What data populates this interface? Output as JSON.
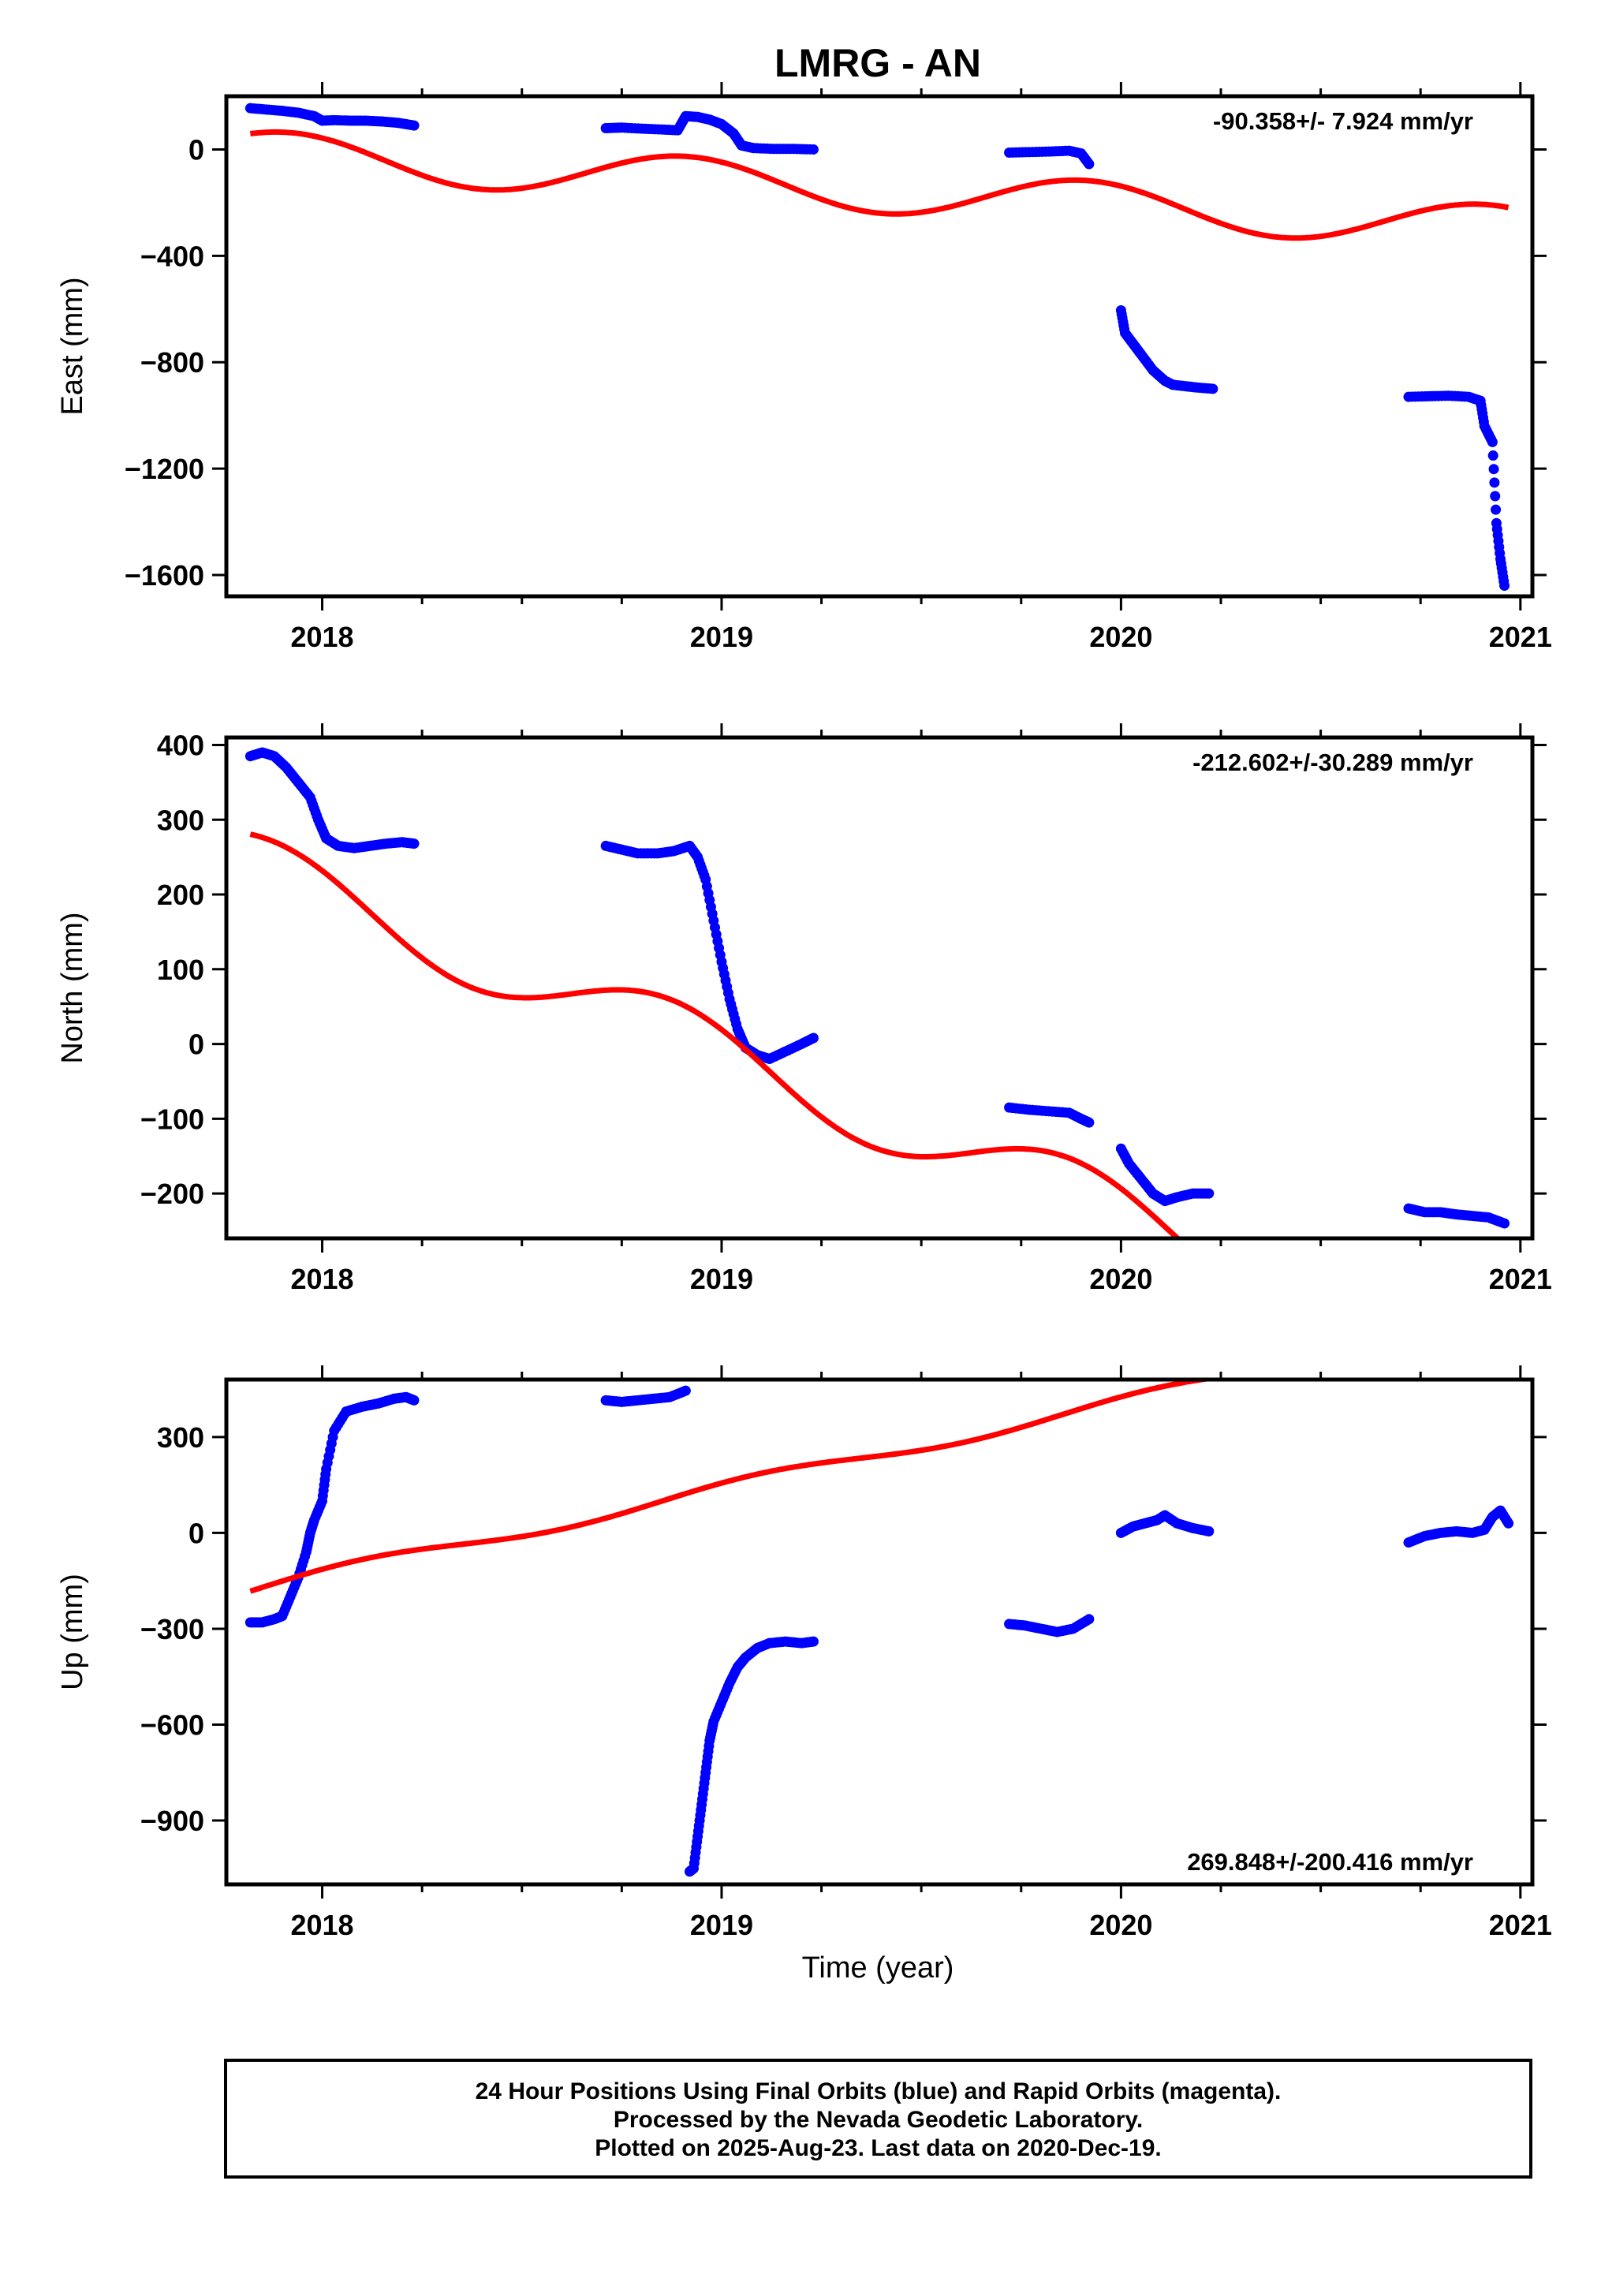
{
  "colors": {
    "final_orbits": "#0000ff",
    "model": "#ff0000",
    "frame": "#000000"
  },
  "footer": {
    "line1": "24 Hour Positions Using Final Orbits (blue) and Rapid Orbits (magenta).",
    "line2": "Processed by the Nevada Geodetic Laboratory.",
    "line3": "Plotted on 2025-Aug-23. Last data on 2020-Dec-19."
  },
  "chart_data": [
    {
      "type": "scatter",
      "title": "LMRG - AN",
      "xlabel": "",
      "ylabel": "East (mm)",
      "rate_label": "-90.358+/- 7.924 mm/yr",
      "xlim": [
        2017.76,
        2021.03
      ],
      "ylim": [
        -1680,
        200
      ],
      "x_ticks": [
        2018,
        2019,
        2020,
        2021
      ],
      "x_tick_labels": [
        "2018",
        "2019",
        "2020",
        "2021"
      ],
      "y_ticks": [
        0,
        -400,
        -800,
        -1200,
        -1600
      ],
      "y_tick_labels": [
        "0",
        "−400",
        "−800",
        "−1200",
        "−1600"
      ],
      "series": [
        {
          "segments": [
            [
              [
                2017.82,
                155
              ],
              [
                2017.86,
                150
              ],
              [
                2017.9,
                145
              ],
              [
                2017.94,
                138
              ],
              [
                2017.98,
                125
              ],
              [
                2018.0,
                108
              ],
              [
                2018.03,
                110
              ],
              [
                2018.07,
                108
              ],
              [
                2018.11,
                108
              ],
              [
                2018.15,
                105
              ],
              [
                2018.19,
                100
              ],
              [
                2018.23,
                90
              ]
            ],
            [
              [
                2018.71,
                80
              ],
              [
                2018.75,
                82
              ],
              [
                2018.8,
                78
              ],
              [
                2018.85,
                75
              ],
              [
                2018.89,
                72
              ],
              [
                2018.91,
                125
              ],
              [
                2018.94,
                122
              ],
              [
                2018.97,
                112
              ],
              [
                2019.0,
                95
              ],
              [
                2019.03,
                60
              ],
              [
                2019.05,
                15
              ],
              [
                2019.08,
                5
              ],
              [
                2019.13,
                2
              ],
              [
                2019.18,
                2
              ],
              [
                2019.23,
                0
              ]
            ],
            [
              [
                2019.72,
                -12
              ],
              [
                2019.77,
                -10
              ],
              [
                2019.82,
                -8
              ],
              [
                2019.87,
                -5
              ],
              [
                2019.9,
                -15
              ],
              [
                2019.92,
                -55
              ]
            ],
            [
              [
                2020.0,
                -605
              ],
              [
                2020.01,
                -690
              ],
              [
                2020.03,
                -730
              ],
              [
                2020.05,
                -770
              ],
              [
                2020.08,
                -830
              ],
              [
                2020.11,
                -870
              ],
              [
                2020.13,
                -885
              ],
              [
                2020.16,
                -890
              ],
              [
                2020.19,
                -895
              ],
              [
                2020.23,
                -900
              ]
            ],
            [
              [
                2020.72,
                -930
              ],
              [
                2020.77,
                -928
              ],
              [
                2020.82,
                -926
              ],
              [
                2020.87,
                -930
              ],
              [
                2020.9,
                -945
              ],
              [
                2020.91,
                -1040
              ],
              [
                2020.93,
                -1100
              ],
              [
                2020.94,
                -1405
              ],
              [
                2020.95,
                -1540
              ],
              [
                2020.96,
                -1640
              ]
            ]
          ]
        },
        {
          "type": "line",
          "model": {
            "offset": -29,
            "rate": -90.358,
            "amp": 85,
            "phase_year": 2017.91
          }
        }
      ]
    },
    {
      "type": "scatter",
      "title": "",
      "xlabel": "",
      "ylabel": "North (mm)",
      "rate_label": "-212.602+/-30.289 mm/yr",
      "xlim": [
        2017.76,
        2021.03
      ],
      "ylim": [
        -260,
        410
      ],
      "x_ticks": [
        2018,
        2019,
        2020,
        2021
      ],
      "x_tick_labels": [
        "2018",
        "2019",
        "2020",
        "2021"
      ],
      "y_ticks": [
        400,
        300,
        200,
        100,
        0,
        -100,
        -200
      ],
      "y_tick_labels": [
        "400",
        "300",
        "200",
        "100",
        "0",
        "−100",
        "−200"
      ],
      "series": [
        {
          "segments": [
            [
              [
                2017.82,
                385
              ],
              [
                2017.85,
                390
              ],
              [
                2017.88,
                385
              ],
              [
                2017.91,
                370
              ],
              [
                2017.94,
                350
              ],
              [
                2017.97,
                330
              ],
              [
                2017.99,
                300
              ],
              [
                2018.01,
                275
              ],
              [
                2018.04,
                265
              ],
              [
                2018.08,
                262
              ],
              [
                2018.12,
                265
              ],
              [
                2018.16,
                268
              ],
              [
                2018.2,
                270
              ],
              [
                2018.23,
                268
              ]
            ],
            [
              [
                2018.71,
                265
              ],
              [
                2018.75,
                260
              ],
              [
                2018.79,
                255
              ],
              [
                2018.84,
                255
              ],
              [
                2018.88,
                258
              ],
              [
                2018.92,
                265
              ],
              [
                2018.94,
                250
              ],
              [
                2018.96,
                220
              ],
              [
                2018.98,
                165
              ],
              [
                2019.0,
                110
              ],
              [
                2019.02,
                60
              ],
              [
                2019.04,
                20
              ],
              [
                2019.06,
                -5
              ],
              [
                2019.09,
                -15
              ],
              [
                2019.12,
                -20
              ],
              [
                2019.16,
                -10
              ],
              [
                2019.2,
                0
              ],
              [
                2019.23,
                8
              ]
            ],
            [
              [
                2019.72,
                -85
              ],
              [
                2019.77,
                -88
              ],
              [
                2019.82,
                -90
              ],
              [
                2019.87,
                -92
              ],
              [
                2019.9,
                -100
              ],
              [
                2019.92,
                -105
              ]
            ],
            [
              [
                2020.0,
                -140
              ],
              [
                2020.02,
                -160
              ],
              [
                2020.05,
                -180
              ],
              [
                2020.08,
                -200
              ],
              [
                2020.11,
                -210
              ],
              [
                2020.14,
                -205
              ],
              [
                2020.18,
                -200
              ],
              [
                2020.22,
                -200
              ]
            ],
            [
              [
                2020.72,
                -220
              ],
              [
                2020.76,
                -225
              ],
              [
                2020.8,
                -225
              ],
              [
                2020.84,
                -228
              ],
              [
                2020.88,
                -230
              ],
              [
                2020.92,
                -232
              ],
              [
                2020.96,
                -240
              ]
            ]
          ]
        },
        {
          "type": "line",
          "model": {
            "offset": 200,
            "rate": -212.602,
            "amp": 45,
            "phase_year": 2017.875
          }
        }
      ]
    },
    {
      "type": "scatter",
      "title": "",
      "xlabel": "Time (year)",
      "ylabel": "Up (mm)",
      "rate_label": "269.848+/-200.416 mm/yr",
      "xlim": [
        2017.76,
        2021.03
      ],
      "ylim": [
        -1100,
        480
      ],
      "x_ticks": [
        2018,
        2019,
        2020,
        2021
      ],
      "x_tick_labels": [
        "2018",
        "2019",
        "2020",
        "2021"
      ],
      "y_ticks": [
        300,
        0,
        -300,
        -600,
        -900
      ],
      "y_tick_labels": [
        "300",
        "0",
        "−300",
        "−600",
        "−900"
      ],
      "series": [
        {
          "segments": [
            [
              [
                2017.82,
                -280
              ],
              [
                2017.85,
                -280
              ],
              [
                2017.88,
                -270
              ],
              [
                2017.9,
                -260
              ],
              [
                2017.92,
                -200
              ],
              [
                2017.94,
                -140
              ],
              [
                2017.96,
                -60
              ],
              [
                2017.97,
                0
              ],
              [
                2017.98,
                40
              ],
              [
                2018.0,
                100
              ],
              [
                2018.01,
                200
              ],
              [
                2018.03,
                320
              ],
              [
                2018.06,
                380
              ],
              [
                2018.1,
                395
              ],
              [
                2018.14,
                405
              ],
              [
                2018.18,
                420
              ],
              [
                2018.21,
                425
              ],
              [
                2018.23,
                415
              ]
            ],
            [
              [
                2018.71,
                415
              ],
              [
                2018.75,
                410
              ],
              [
                2018.79,
                415
              ],
              [
                2018.83,
                420
              ],
              [
                2018.87,
                425
              ],
              [
                2018.91,
                445
              ]
            ],
            [
              [
                2018.92,
                -1060
              ],
              [
                2018.93,
                -1050
              ],
              [
                2018.94,
                -950
              ],
              [
                2018.95,
                -850
              ],
              [
                2018.96,
                -750
              ],
              [
                2018.97,
                -650
              ],
              [
                2018.98,
                -590
              ],
              [
                2019.0,
                -530
              ],
              [
                2019.02,
                -470
              ],
              [
                2019.04,
                -420
              ],
              [
                2019.06,
                -390
              ],
              [
                2019.09,
                -360
              ],
              [
                2019.12,
                -345
              ],
              [
                2019.16,
                -340
              ],
              [
                2019.2,
                -345
              ],
              [
                2019.23,
                -340
              ]
            ],
            [
              [
                2019.72,
                -285
              ],
              [
                2019.76,
                -290
              ],
              [
                2019.8,
                -300
              ],
              [
                2019.84,
                -310
              ],
              [
                2019.88,
                -300
              ],
              [
                2019.92,
                -270
              ]
            ],
            [
              [
                2020.0,
                0
              ],
              [
                2020.03,
                20
              ],
              [
                2020.06,
                30
              ],
              [
                2020.09,
                40
              ],
              [
                2020.11,
                55
              ],
              [
                2020.14,
                30
              ],
              [
                2020.18,
                15
              ],
              [
                2020.22,
                5
              ]
            ],
            [
              [
                2020.72,
                -30
              ],
              [
                2020.76,
                -10
              ],
              [
                2020.8,
                0
              ],
              [
                2020.84,
                5
              ],
              [
                2020.88,
                0
              ],
              [
                2020.91,
                10
              ],
              [
                2020.93,
                50
              ],
              [
                2020.95,
                70
              ],
              [
                2020.97,
                30
              ]
            ]
          ]
        },
        {
          "type": "line",
          "model": {
            "offset": -130,
            "rate": 269.848,
            "amp": 20,
            "phase_year": 2018.1
          }
        }
      ]
    }
  ]
}
